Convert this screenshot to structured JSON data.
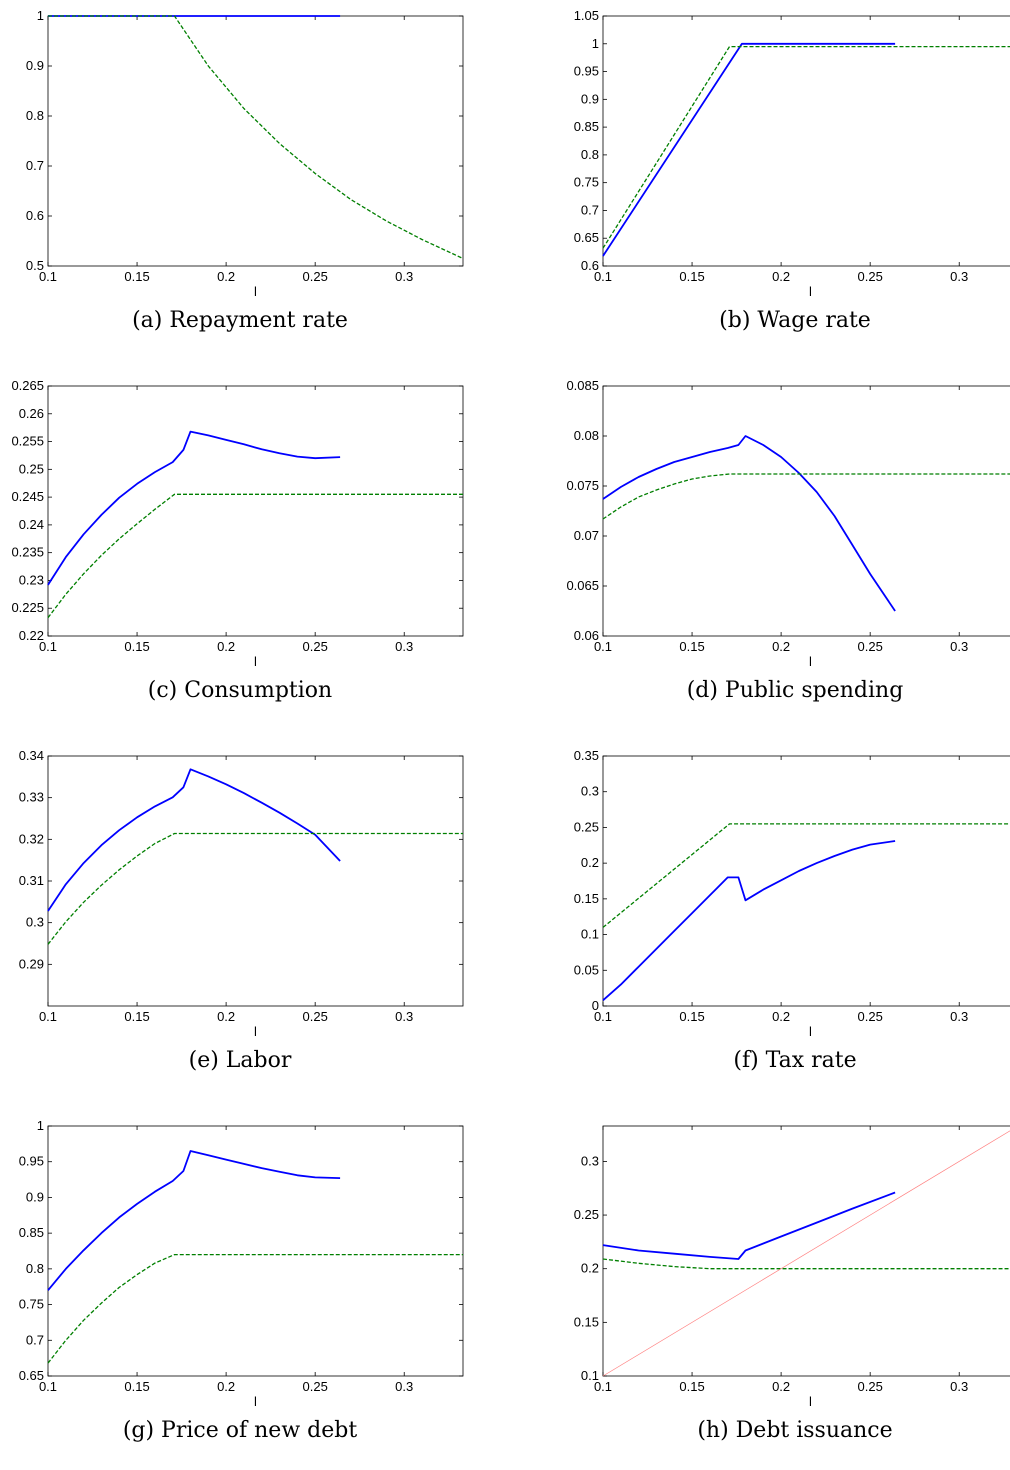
{
  "chart_data": [
    {
      "type": "line",
      "caption": "(a) Repayment rate",
      "xlabel": "l",
      "xlim": [
        0.1,
        0.333
      ],
      "ylim": [
        0.5,
        1.0
      ],
      "xticks": [
        "0.1",
        "0.15",
        "0.2",
        "0.25",
        "0.3"
      ],
      "yticks": [
        "0.5",
        "0.6",
        "0.7",
        "0.8",
        "0.9",
        "1"
      ],
      "series": [
        {
          "color": "#0000ff",
          "style": "solid",
          "x": [
            0.1,
            0.264
          ],
          "y": [
            1.0,
            1.0
          ]
        },
        {
          "color": "#007f00",
          "style": "dashed",
          "x": [
            0.1,
            0.171,
            0.19,
            0.21,
            0.23,
            0.25,
            0.27,
            0.29,
            0.31,
            0.333
          ],
          "y": [
            1.0,
            1.0,
            0.9,
            0.815,
            0.745,
            0.685,
            0.633,
            0.59,
            0.553,
            0.515
          ]
        }
      ]
    },
    {
      "type": "line",
      "caption": "(b) Wage rate",
      "xlabel": "l",
      "xlim": [
        0.1,
        0.333
      ],
      "ylim": [
        0.6,
        1.05
      ],
      "xticks": [
        "0.1",
        "0.15",
        "0.2",
        "0.25",
        "0.3"
      ],
      "yticks": [
        "0.6",
        "0.65",
        "0.7",
        "0.75",
        "0.8",
        "0.85",
        "0.9",
        "0.95",
        "1",
        "1.05"
      ],
      "series": [
        {
          "color": "#0000ff",
          "style": "solid",
          "x": [
            0.1,
            0.178,
            0.264
          ],
          "y": [
            0.618,
            1.0,
            1.0
          ]
        },
        {
          "color": "#007f00",
          "style": "dashed",
          "x": [
            0.1,
            0.171,
            0.264,
            0.333
          ],
          "y": [
            0.632,
            0.995,
            0.995,
            0.995
          ]
        }
      ]
    },
    {
      "type": "line",
      "caption": "(c) Consumption",
      "xlabel": "l",
      "xlim": [
        0.1,
        0.333
      ],
      "ylim": [
        0.22,
        0.265
      ],
      "xticks": [
        "0.1",
        "0.15",
        "0.2",
        "0.25",
        "0.3"
      ],
      "yticks": [
        "0.22",
        "0.225",
        "0.23",
        "0.235",
        "0.24",
        "0.245",
        "0.25",
        "0.255",
        "0.26",
        "0.265"
      ],
      "series": [
        {
          "color": "#0000ff",
          "style": "solid",
          "x": [
            0.1,
            0.11,
            0.12,
            0.13,
            0.14,
            0.15,
            0.16,
            0.17,
            0.176,
            0.18,
            0.19,
            0.2,
            0.21,
            0.22,
            0.23,
            0.24,
            0.25,
            0.264
          ],
          "y": [
            0.2292,
            0.2342,
            0.2383,
            0.2418,
            0.2449,
            0.2474,
            0.2495,
            0.2513,
            0.2535,
            0.2568,
            0.2561,
            0.2553,
            0.2545,
            0.2536,
            0.2529,
            0.2523,
            0.252,
            0.2522
          ]
        },
        {
          "color": "#007f00",
          "style": "dashed",
          "x": [
            0.1,
            0.11,
            0.12,
            0.13,
            0.14,
            0.15,
            0.16,
            0.171,
            0.2,
            0.25,
            0.3,
            0.333
          ],
          "y": [
            0.2233,
            0.2275,
            0.2312,
            0.2345,
            0.2375,
            0.2402,
            0.2428,
            0.2455,
            0.2455,
            0.2455,
            0.2455,
            0.2455
          ]
        }
      ]
    },
    {
      "type": "line",
      "caption": "(d) Public spending",
      "xlabel": "l",
      "xlim": [
        0.1,
        0.333
      ],
      "ylim": [
        0.06,
        0.085
      ],
      "xticks": [
        "0.1",
        "0.15",
        "0.2",
        "0.25",
        "0.3"
      ],
      "yticks": [
        "0.06",
        "0.065",
        "0.07",
        "0.075",
        "0.08",
        "0.085"
      ],
      "series": [
        {
          "color": "#0000ff",
          "style": "solid",
          "x": [
            0.1,
            0.11,
            0.12,
            0.13,
            0.14,
            0.15,
            0.16,
            0.17,
            0.176,
            0.18,
            0.19,
            0.2,
            0.21,
            0.22,
            0.23,
            0.24,
            0.25,
            0.264
          ],
          "y": [
            0.0737,
            0.0749,
            0.0759,
            0.0767,
            0.0774,
            0.0779,
            0.0784,
            0.0788,
            0.0791,
            0.08,
            0.0791,
            0.0779,
            0.0763,
            0.0744,
            0.072,
            0.0691,
            0.0662,
            0.0625
          ]
        },
        {
          "color": "#007f00",
          "style": "dashed",
          "x": [
            0.1,
            0.11,
            0.12,
            0.13,
            0.14,
            0.15,
            0.16,
            0.171,
            0.2,
            0.25,
            0.3,
            0.333
          ],
          "y": [
            0.0717,
            0.0729,
            0.0739,
            0.0746,
            0.0752,
            0.0757,
            0.076,
            0.0762,
            0.0762,
            0.0762,
            0.0762,
            0.0762
          ]
        }
      ]
    },
    {
      "type": "line",
      "caption": "(e) Labor",
      "xlabel": "l",
      "xlim": [
        0.1,
        0.333
      ],
      "ylim": [
        0.28,
        0.34
      ],
      "xticks": [
        "0.1",
        "0.15",
        "0.2",
        "0.25",
        "0.3"
      ],
      "yticks": [
        "0.29",
        "0.3",
        "0.31",
        "0.32",
        "0.33",
        "0.34"
      ],
      "series": [
        {
          "color": "#0000ff",
          "style": "solid",
          "x": [
            0.1,
            0.11,
            0.12,
            0.13,
            0.14,
            0.15,
            0.16,
            0.17,
            0.176,
            0.18,
            0.19,
            0.2,
            0.21,
            0.22,
            0.23,
            0.24,
            0.25,
            0.264
          ],
          "y": [
            0.3028,
            0.3092,
            0.3143,
            0.3186,
            0.3222,
            0.3253,
            0.3279,
            0.3301,
            0.3325,
            0.3368,
            0.3351,
            0.3332,
            0.3311,
            0.3288,
            0.3264,
            0.3238,
            0.3211,
            0.3148
          ]
        },
        {
          "color": "#007f00",
          "style": "dashed",
          "x": [
            0.1,
            0.11,
            0.12,
            0.13,
            0.14,
            0.15,
            0.16,
            0.171,
            0.2,
            0.25,
            0.3,
            0.333
          ],
          "y": [
            0.2948,
            0.3002,
            0.3049,
            0.309,
            0.3127,
            0.316,
            0.319,
            0.3214,
            0.3214,
            0.3214,
            0.3214,
            0.3214
          ]
        }
      ]
    },
    {
      "type": "line",
      "caption": "(f) Tax rate",
      "xlabel": "l",
      "xlim": [
        0.1,
        0.333
      ],
      "ylim": [
        0.0,
        0.35
      ],
      "xticks": [
        "0.1",
        "0.15",
        "0.2",
        "0.25",
        "0.3"
      ],
      "yticks": [
        "0",
        "0.05",
        "0.1",
        "0.15",
        "0.2",
        "0.25",
        "0.3",
        "0.35"
      ],
      "series": [
        {
          "color": "#0000ff",
          "style": "solid",
          "x": [
            0.1,
            0.11,
            0.12,
            0.13,
            0.14,
            0.15,
            0.16,
            0.17,
            0.176,
            0.18,
            0.19,
            0.2,
            0.21,
            0.22,
            0.23,
            0.24,
            0.25,
            0.264
          ],
          "y": [
            0.008,
            0.03,
            0.055,
            0.08,
            0.105,
            0.13,
            0.155,
            0.18,
            0.18,
            0.148,
            0.163,
            0.176,
            0.189,
            0.2,
            0.21,
            0.219,
            0.226,
            0.231
          ]
        },
        {
          "color": "#007f00",
          "style": "dashed",
          "x": [
            0.1,
            0.171,
            0.2,
            0.25,
            0.3,
            0.333
          ],
          "y": [
            0.11,
            0.255,
            0.255,
            0.255,
            0.255,
            0.255
          ]
        }
      ]
    },
    {
      "type": "line",
      "caption": "(g) Price of new debt",
      "xlabel": "l",
      "xlim": [
        0.1,
        0.333
      ],
      "ylim": [
        0.65,
        1.0
      ],
      "xticks": [
        "0.1",
        "0.15",
        "0.2",
        "0.25",
        "0.3"
      ],
      "yticks": [
        "0.65",
        "0.7",
        "0.75",
        "0.8",
        "0.85",
        "0.9",
        "0.95",
        "1"
      ],
      "series": [
        {
          "color": "#0000ff",
          "style": "solid",
          "x": [
            0.1,
            0.11,
            0.12,
            0.13,
            0.14,
            0.15,
            0.16,
            0.17,
            0.176,
            0.18,
            0.19,
            0.2,
            0.21,
            0.22,
            0.23,
            0.24,
            0.25,
            0.264
          ],
          "y": [
            0.77,
            0.8,
            0.826,
            0.85,
            0.872,
            0.891,
            0.908,
            0.923,
            0.937,
            0.965,
            0.959,
            0.953,
            0.947,
            0.941,
            0.936,
            0.931,
            0.928,
            0.927
          ]
        },
        {
          "color": "#007f00",
          "style": "dashed",
          "x": [
            0.1,
            0.11,
            0.12,
            0.13,
            0.14,
            0.15,
            0.16,
            0.171,
            0.2,
            0.25,
            0.3,
            0.333
          ],
          "y": [
            0.668,
            0.7,
            0.728,
            0.752,
            0.774,
            0.792,
            0.808,
            0.82,
            0.82,
            0.82,
            0.82,
            0.82
          ]
        }
      ]
    },
    {
      "type": "line",
      "caption": "(h) Debt issuance",
      "xlabel": "l",
      "xlim": [
        0.1,
        0.333
      ],
      "ylim": [
        0.1,
        0.333
      ],
      "xticks": [
        "0.1",
        "0.15",
        "0.2",
        "0.25",
        "0.3"
      ],
      "yticks": [
        "0.1",
        "0.15",
        "0.2",
        "0.25",
        "0.3"
      ],
      "series": [
        {
          "color": "#0000ff",
          "style": "solid",
          "x": [
            0.1,
            0.12,
            0.14,
            0.16,
            0.176,
            0.18,
            0.2,
            0.22,
            0.24,
            0.264
          ],
          "y": [
            0.222,
            0.217,
            0.214,
            0.211,
            0.209,
            0.217,
            0.23,
            0.243,
            0.256,
            0.271
          ]
        },
        {
          "color": "#007f00",
          "style": "dashed",
          "x": [
            0.1,
            0.12,
            0.14,
            0.16,
            0.2,
            0.25,
            0.3,
            0.333
          ],
          "y": [
            0.209,
            0.205,
            0.202,
            0.2,
            0.2,
            0.2,
            0.2,
            0.2
          ]
        },
        {
          "color": "#ff8080",
          "style": "thin",
          "x": [
            0.1,
            0.333
          ],
          "y": [
            0.1,
            0.333
          ]
        }
      ]
    }
  ]
}
